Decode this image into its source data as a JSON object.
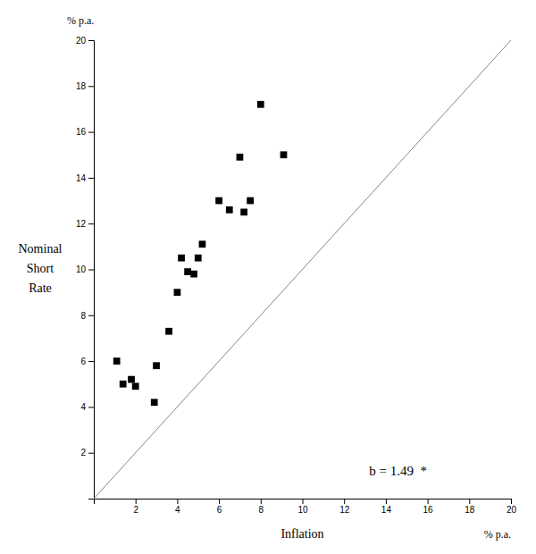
{
  "chart_data": {
    "type": "scatter",
    "x_label": "Inflation",
    "y_label": "Nominal\nShort\nRate",
    "x_unit": "% p.a.",
    "y_unit": "% p.a.",
    "xlim": [
      0,
      20
    ],
    "ylim": [
      0,
      20
    ],
    "xticks": [
      2,
      4,
      6,
      8,
      10,
      12,
      14,
      16,
      18,
      20
    ],
    "yticks": [
      2,
      4,
      6,
      8,
      10,
      12,
      14,
      16,
      18,
      20
    ],
    "series": [
      {
        "type": "line",
        "color": "#888888",
        "line_style": "solid",
        "x": [
          0,
          20
        ],
        "values": [
          0,
          20
        ]
      },
      {
        "type": "scatter",
        "color": "#000000",
        "marker": "square",
        "x": [
          1.1,
          1.4,
          1.8,
          2.0,
          2.9,
          3.0,
          3.6,
          4.0,
          4.2,
          4.5,
          4.8,
          5.0,
          5.2,
          6.0,
          6.5,
          7.0,
          7.2,
          7.5,
          8.0,
          9.1
        ],
        "values": [
          6.0,
          5.0,
          5.2,
          4.9,
          4.2,
          5.8,
          7.3,
          9.0,
          10.5,
          9.9,
          9.8,
          10.5,
          11.1,
          13.0,
          12.6,
          14.9,
          12.5,
          13.0,
          17.2,
          15.0
        ]
      }
    ],
    "annotations": [
      {
        "text": "b = 1.49  *",
        "x": 13.2,
        "y": 1.0
      }
    ],
    "grid": false
  }
}
